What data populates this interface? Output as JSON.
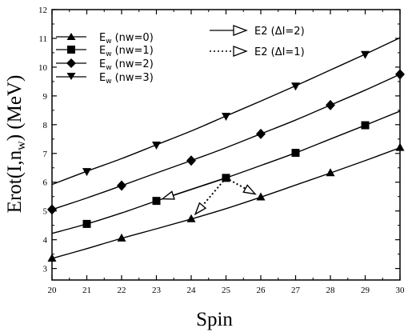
{
  "chart_data": {
    "type": "line",
    "xlabel": "Spin",
    "ylabel_prefix": "Erot(I,n",
    "ylabel_sub": "w",
    "ylabel_suffix": ") (MeV)",
    "xlim": [
      20,
      30
    ],
    "ylim": [
      2.6,
      12
    ],
    "x_ticks": [
      20,
      21,
      22,
      23,
      24,
      25,
      26,
      27,
      28,
      29,
      30
    ],
    "y_ticks": [
      3,
      4,
      5,
      6,
      7,
      8,
      9,
      10,
      11,
      12
    ],
    "grid": false,
    "legend_position": "top-left",
    "series": [
      {
        "name": "Ew (nw=0)",
        "legend_main": "E",
        "legend_sub": "w",
        "legend_paren": "(nw=0)",
        "marker": "triangle-up",
        "points": [
          [
            20,
            3.35
          ],
          [
            22,
            4.05
          ],
          [
            24,
            4.72
          ],
          [
            26,
            5.48
          ],
          [
            28,
            6.32
          ],
          [
            30,
            7.2
          ]
        ],
        "curve": [
          [
            20,
            3.35
          ],
          [
            21,
            3.69
          ],
          [
            22,
            4.05
          ],
          [
            23,
            4.38
          ],
          [
            24,
            4.72
          ],
          [
            25,
            5.08
          ],
          [
            26,
            5.48
          ],
          [
            27,
            5.9
          ],
          [
            28,
            6.32
          ],
          [
            29,
            6.75
          ],
          [
            30,
            7.2
          ]
        ]
      },
      {
        "name": "Ew (nw=1)",
        "legend_main": "E",
        "legend_sub": "w",
        "legend_paren": "(nw=1)",
        "marker": "square",
        "points": [
          [
            21,
            4.55
          ],
          [
            23,
            5.35
          ],
          [
            25,
            6.15
          ],
          [
            27,
            7.02
          ],
          [
            29,
            7.98
          ]
        ],
        "curve": [
          [
            20,
            4.22
          ],
          [
            21,
            4.55
          ],
          [
            22,
            4.93
          ],
          [
            23,
            5.35
          ],
          [
            24,
            5.75
          ],
          [
            25,
            6.15
          ],
          [
            26,
            6.58
          ],
          [
            27,
            7.02
          ],
          [
            28,
            7.5
          ],
          [
            29,
            7.98
          ],
          [
            30,
            8.47
          ]
        ]
      },
      {
        "name": "Ew (nw=2)",
        "legend_main": "E",
        "legend_sub": "w",
        "legend_paren": "(nw=2)",
        "marker": "diamond",
        "points": [
          [
            20,
            5.05
          ],
          [
            22,
            5.88
          ],
          [
            24,
            6.75
          ],
          [
            26,
            7.68
          ],
          [
            28,
            8.68
          ],
          [
            30,
            9.75
          ]
        ],
        "curve": [
          [
            20,
            5.05
          ],
          [
            21,
            5.45
          ],
          [
            22,
            5.88
          ],
          [
            23,
            6.32
          ],
          [
            24,
            6.75
          ],
          [
            25,
            7.2
          ],
          [
            26,
            7.68
          ],
          [
            27,
            8.16
          ],
          [
            28,
            8.68
          ],
          [
            29,
            9.2
          ],
          [
            30,
            9.75
          ]
        ]
      },
      {
        "name": "Ew (nw=3)",
        "legend_main": "E",
        "legend_sub": "w",
        "legend_paren": "(nw=3)",
        "marker": "triangle-down",
        "points": [
          [
            21,
            6.38
          ],
          [
            23,
            7.3
          ],
          [
            25,
            8.3
          ],
          [
            27,
            9.35
          ],
          [
            29,
            10.45
          ]
        ],
        "curve": [
          [
            20,
            5.92
          ],
          [
            21,
            6.38
          ],
          [
            22,
            6.82
          ],
          [
            23,
            7.3
          ],
          [
            24,
            7.78
          ],
          [
            25,
            8.3
          ],
          [
            26,
            8.82
          ],
          [
            27,
            9.35
          ],
          [
            28,
            9.9
          ],
          [
            29,
            10.45
          ],
          [
            30,
            11.02
          ]
        ]
      }
    ],
    "transitions": [
      {
        "legend": "E2 (ΔI=2)",
        "style": "solid",
        "from": [
          25,
          6.15
        ],
        "to": [
          23,
          5.35
        ]
      },
      {
        "legend": "E2 (ΔI=1)",
        "style": "dotted",
        "from": [
          25,
          6.15
        ],
        "to": [
          26,
          5.48
        ]
      },
      {
        "legend": "E2 (ΔI=1)",
        "style": "dotted",
        "from": [
          25,
          6.15
        ],
        "to": [
          24,
          4.72
        ]
      }
    ],
    "transition_legend": [
      {
        "label": "E2 (ΔI=2)",
        "style": "solid"
      },
      {
        "label": "E2 (ΔI=1)",
        "style": "dotted"
      }
    ]
  }
}
